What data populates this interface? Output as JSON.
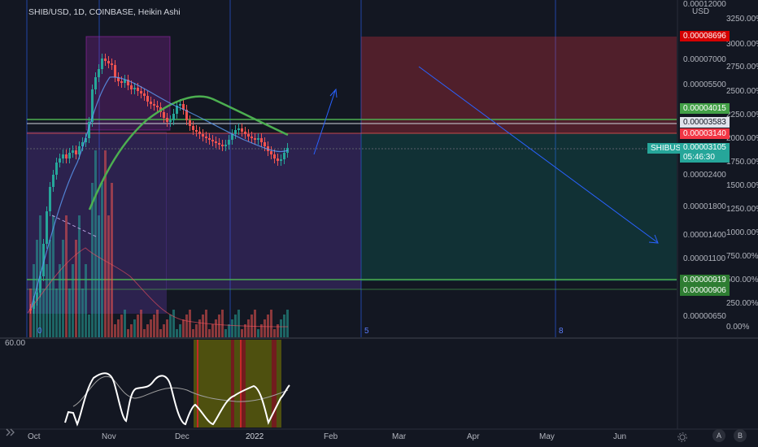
{
  "header": {
    "title": "SHIB/USD, 1D, COINBASE, Heikin Ashi"
  },
  "price_axis": {
    "currency": "USD",
    "price_ticks": [
      "0.00012000",
      "0.00007000",
      "0.00005500",
      "0.00002400",
      "0.00001800",
      "0.00001400",
      "0.00001100",
      "0.00000650"
    ],
    "pct_ticks": [
      "3250.00%",
      "3000.00%",
      "2750.00%",
      "2500.00%",
      "2250.00%",
      "2000.00%",
      "1750.00%",
      "1500.00%",
      "1250.00%",
      "1000.00%",
      "750.00%",
      "500.00%",
      "250.00%",
      "0.00%"
    ]
  },
  "badges": {
    "stop": "0.00008696",
    "level_green_top": "0.00004015",
    "level_white": "0.00003583",
    "level_red": "0.00003140",
    "symbol": "SHIBUSD",
    "last_price": "0.00003105",
    "countdown": "05:46:30",
    "level_green_low": "0.00000919",
    "level_green_bottom": "0.00000906"
  },
  "time_axis": {
    "labels": [
      "Oct",
      "Nov",
      "Dec",
      "2022",
      "Feb",
      "Mar",
      "Apr",
      "May",
      "Jun"
    ]
  },
  "markers": [
    "0",
    "5",
    "8"
  ],
  "oscillator": {
    "scale_label": "60.00"
  },
  "tools": {
    "goto_icon": "go-to-realtime-icon",
    "auto_label": "A",
    "log_label": "B"
  },
  "colors": {
    "background": "#131722",
    "up": "#26a69a",
    "down": "#ef5350",
    "accent_green": "#4caf50",
    "blue": "#2962ff"
  }
}
